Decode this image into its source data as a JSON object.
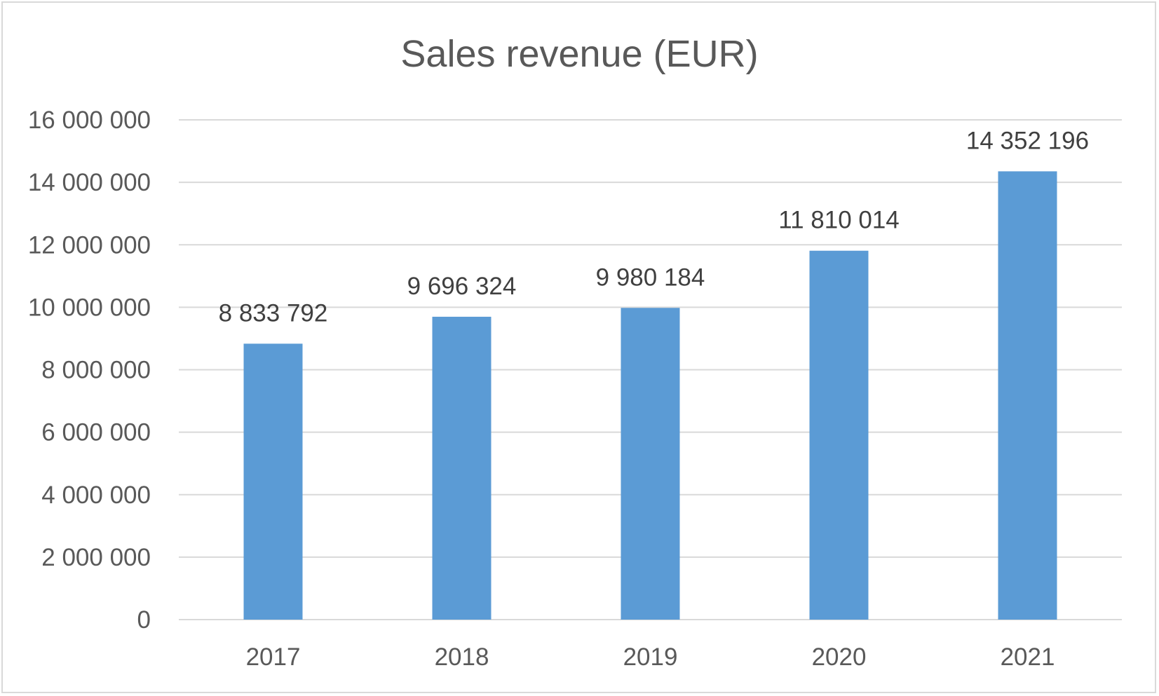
{
  "chart_data": {
    "type": "bar",
    "title": "Sales revenue (EUR)",
    "xlabel": "",
    "ylabel": "",
    "categories": [
      "2017",
      "2018",
      "2019",
      "2020",
      "2021"
    ],
    "values": [
      8833792,
      9696324,
      9980184,
      11810014,
      14352196
    ],
    "data_labels": [
      "8 833 792",
      "9 696 324",
      "9 980 184",
      "11 810 014",
      "14 352 196"
    ],
    "ylim": [
      0,
      16000000
    ],
    "yticks": [
      0,
      2000000,
      4000000,
      6000000,
      8000000,
      10000000,
      12000000,
      14000000,
      16000000
    ],
    "ytick_labels": [
      "0",
      "2 000 000",
      "4 000 000",
      "6 000 000",
      "8 000 000",
      "10 000 000",
      "12 000 000",
      "14 000 000",
      "16 000 000"
    ],
    "grid": true,
    "legend": "none",
    "colors": {
      "bar": "#5b9bd5",
      "grid": "#d9d9d9",
      "text": "#595959",
      "data_label": "#404040"
    }
  }
}
